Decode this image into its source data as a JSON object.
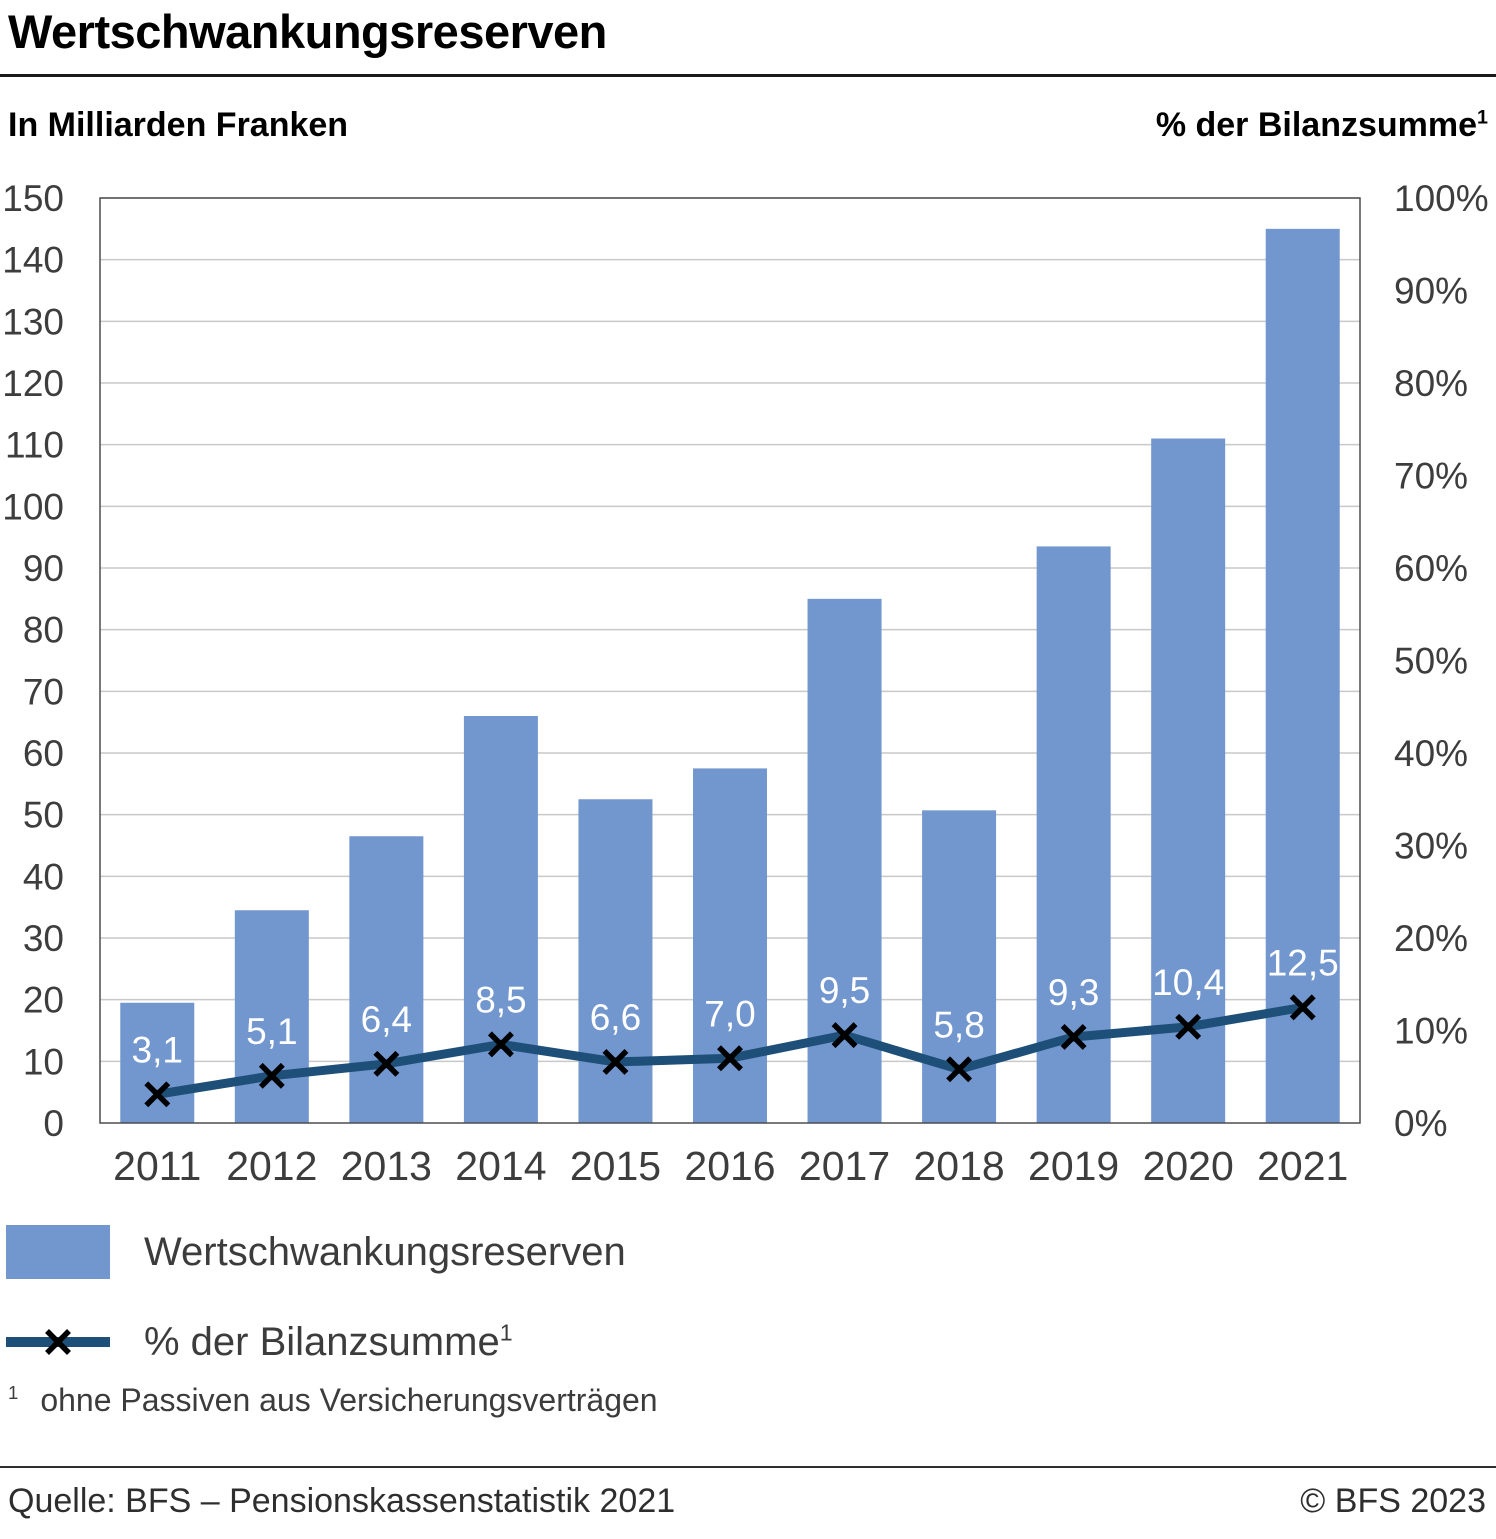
{
  "title": "Wertschwankungsreserven",
  "chart_data": {
    "type": "bar+line",
    "categories": [
      "2011",
      "2012",
      "2013",
      "2014",
      "2015",
      "2016",
      "2017",
      "2018",
      "2019",
      "2020",
      "2021"
    ],
    "series": [
      {
        "name": "Wertschwankungsreserven",
        "type": "bar",
        "axis": "left",
        "unit": "Milliarden Franken",
        "color": "#7296ce",
        "values": [
          19.5,
          34.5,
          46.5,
          66,
          52.5,
          57.5,
          85,
          50.7,
          93.5,
          111,
          145
        ]
      },
      {
        "name": "% der Bilanzsumme",
        "type": "line",
        "axis": "right",
        "unit": "%",
        "color": "#1e4f78",
        "marker": "x",
        "marker_color": "#000000",
        "values": [
          3.1,
          5.1,
          6.4,
          8.5,
          6.6,
          7.0,
          9.5,
          5.8,
          9.3,
          10.4,
          12.5
        ],
        "value_labels": [
          "3,1",
          "5,1",
          "6,4",
          "8,5",
          "6,6",
          "7,0",
          "9,5",
          "5,8",
          "9,3",
          "10,4",
          "12,5"
        ],
        "label_color": "#ffffff"
      }
    ],
    "left_axis": {
      "label": "In Milliarden Franken",
      "min": 0,
      "max": 150,
      "step": 10,
      "tick_suffix": ""
    },
    "right_axis": {
      "label": "% der Bilanzsumme",
      "footnote_ref": "1",
      "min": 0,
      "max": 100,
      "step": 10,
      "tick_suffix": "%"
    },
    "grid": "horizontal",
    "legend_position": "bottom-left"
  },
  "legend": {
    "items": [
      {
        "label": "Wertschwankungsreserven",
        "type": "bar-swatch",
        "color": "#7296ce"
      },
      {
        "label": "% der Bilanzsumme",
        "footnote_ref": "1",
        "type": "line-x-swatch",
        "color": "#1e4f78",
        "marker_color": "#000000"
      }
    ]
  },
  "footnote": {
    "marker": "1",
    "text": "ohne Passiven aus Versicherungsverträgen"
  },
  "footer": {
    "source": "Quelle: BFS – Pensionskassenstatistik 2021",
    "copyright": "© BFS 2023"
  },
  "colors": {
    "bar": "#7296ce",
    "line": "#1e4f78",
    "marker": "#000000",
    "grid": "#c9c9c9",
    "axis_border": "#4d4d4d",
    "text": "#3d3d3d",
    "title": "#000000"
  }
}
